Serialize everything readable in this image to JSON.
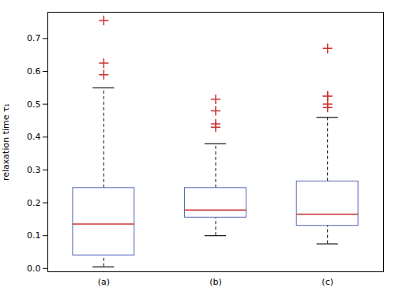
{
  "chart_data": {
    "type": "box",
    "categories": [
      "(a)",
      "(b)",
      "(c)"
    ],
    "ylabel": "relaxation time τ₁",
    "ylim": [
      -0.01,
      0.78
    ],
    "yticks": [
      {
        "value": 0,
        "label": "0.0"
      },
      0.1,
      0.2,
      0.3,
      0.4,
      0.5,
      0.6,
      0.7
    ],
    "grid": false,
    "boxes": {
      "q1": [
        0.04,
        0.155,
        0.13
      ],
      "q3": [
        0.245,
        0.245,
        0.265
      ],
      "color": "#5566bb"
    },
    "medians": {
      "values": [
        0.135,
        0.178,
        0.165
      ],
      "color": "#cc3333"
    },
    "whiskers": {
      "low": [
        0.005,
        0.1,
        0.075
      ],
      "high": [
        0.55,
        0.38,
        0.46
      ],
      "color": "#111111",
      "line_style": "dashed"
    },
    "fliers": {
      "values": [
        [
          0.59,
          0.625,
          0.755
        ],
        [
          0.43,
          0.44,
          0.48,
          0.515
        ],
        [
          0.49,
          0.5,
          0.525,
          0.525,
          0.67
        ]
      ],
      "color": "#cc3333",
      "marker": "plus"
    }
  }
}
